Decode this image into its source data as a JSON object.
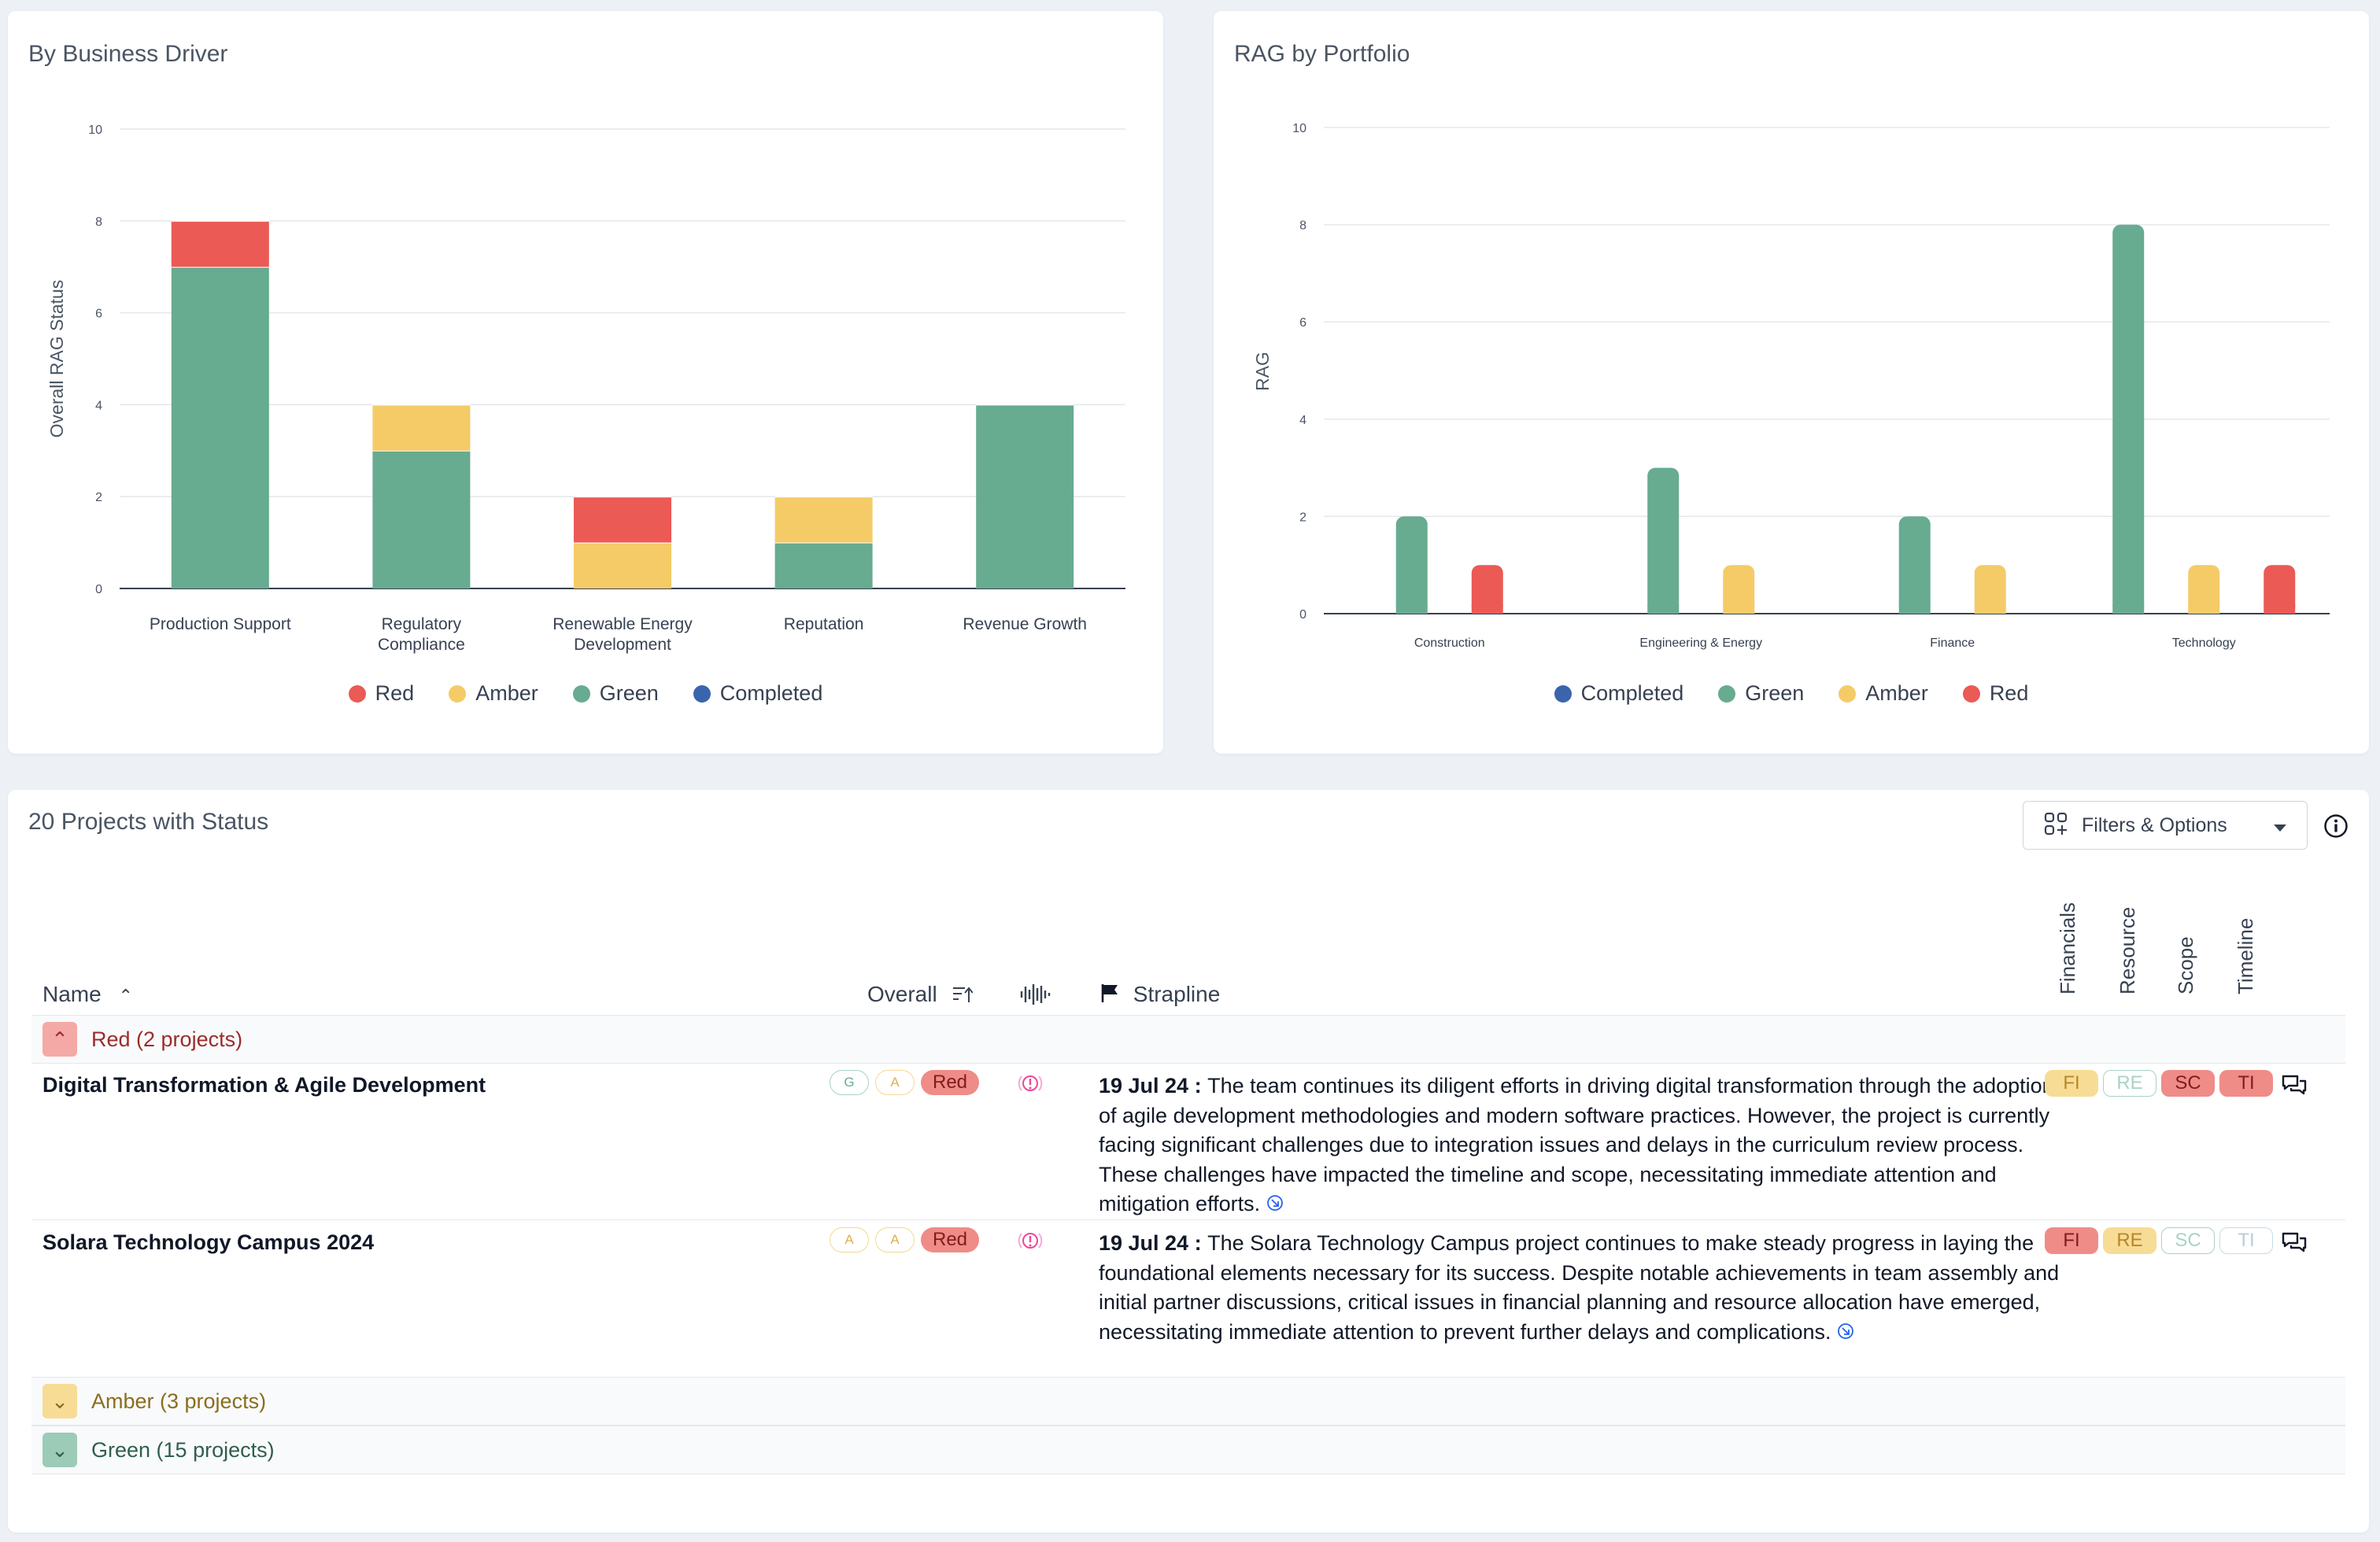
{
  "panels": {
    "driver_title": "By Business Driver",
    "portfolio_title": "RAG by Portfolio",
    "projects_title": "20 Projects with Status"
  },
  "colors": {
    "red": "#eb5a55",
    "amber": "#f4cb67",
    "green": "#67ab91",
    "completed": "#3a65ad"
  },
  "chart_data": [
    {
      "type": "bar",
      "stacked": true,
      "title": "By Business Driver",
      "ylabel": "Overall RAG Status",
      "ylim": [
        0,
        10
      ],
      "yticks": [
        "0",
        "2",
        "4",
        "6",
        "8",
        "10"
      ],
      "categories": [
        "Production Support",
        "Regulatory Compliance",
        "Renewable Energy Development",
        "Reputation",
        "Revenue Growth"
      ],
      "series": [
        {
          "name": "Red",
          "values": [
            1,
            0,
            1,
            0,
            0
          ]
        },
        {
          "name": "Amber",
          "values": [
            0,
            1,
            1,
            1,
            0
          ]
        },
        {
          "name": "Green",
          "values": [
            7,
            3,
            0,
            1,
            4
          ]
        },
        {
          "name": "Completed",
          "values": [
            0,
            0,
            0,
            0,
            0
          ]
        }
      ],
      "legend": [
        "Red",
        "Amber",
        "Green",
        "Completed"
      ],
      "legend_position": "bottom"
    },
    {
      "type": "bar",
      "stacked": false,
      "title": "RAG by Portfolio",
      "ylabel": "RAG",
      "ylim": [
        0,
        10
      ],
      "yticks": [
        "0",
        "2",
        "4",
        "6",
        "8",
        "10"
      ],
      "categories": [
        "Construction",
        "Engineering & Energy",
        "Finance",
        "Technology"
      ],
      "series": [
        {
          "name": "Completed",
          "values": [
            0,
            0,
            0,
            0
          ]
        },
        {
          "name": "Green",
          "values": [
            2,
            3,
            2,
            8
          ]
        },
        {
          "name": "Amber",
          "values": [
            0,
            1,
            1,
            1
          ]
        },
        {
          "name": "Red",
          "values": [
            1,
            0,
            0,
            1
          ]
        }
      ],
      "legend": [
        "Completed",
        "Green",
        "Amber",
        "Red"
      ],
      "legend_position": "bottom"
    }
  ],
  "toolbar": {
    "filters_label": "Filters & Options"
  },
  "table": {
    "col_name": "Name",
    "col_overall": "Overall",
    "col_strapline": "Strapline",
    "vert_cols": [
      "Financials",
      "Resource",
      "Scope",
      "Timeline"
    ],
    "groups": [
      {
        "label": "Red (2 projects)",
        "status": "red",
        "expanded": true
      },
      {
        "label": "Amber (3 projects)",
        "status": "amber",
        "expanded": false
      },
      {
        "label": "Green (15 projects)",
        "status": "green",
        "expanded": false
      }
    ],
    "rows": [
      {
        "name": "Digital Transformation & Agile Development",
        "rag_small": [
          "G",
          "A"
        ],
        "rag_overall": "Red",
        "date": "19 Jul 24",
        "sep": " : ",
        "strapline": "The team continues its diligent efforts in driving digital transformation through the adoption of agile development methodologies and modern software practices. However, the project is currently facing significant challenges due to integration issues and delays in the curriculum review process. These challenges have impacted the timeline and scope, necessitating immediate attention and mitigation efforts.",
        "chips": [
          "FI",
          "RE",
          "SC",
          "TI"
        ],
        "chip_status": [
          "amber",
          "none",
          "red",
          "red"
        ]
      },
      {
        "name": "Solara Technology Campus 2024",
        "rag_small": [
          "A",
          "A"
        ],
        "rag_overall": "Red",
        "date": "19 Jul 24",
        "sep": " : ",
        "strapline": "The Solara Technology Campus project continues to make steady progress in laying the foundational elements necessary for its success. Despite notable achievements in team assembly and initial partner discussions, critical issues in financial planning and resource allocation have emerged, necessitating immediate attention to prevent further delays and complications.",
        "chips": [
          "FI",
          "RE",
          "SC",
          "TI"
        ],
        "chip_status": [
          "red",
          "amber",
          "none",
          "none"
        ]
      }
    ]
  }
}
